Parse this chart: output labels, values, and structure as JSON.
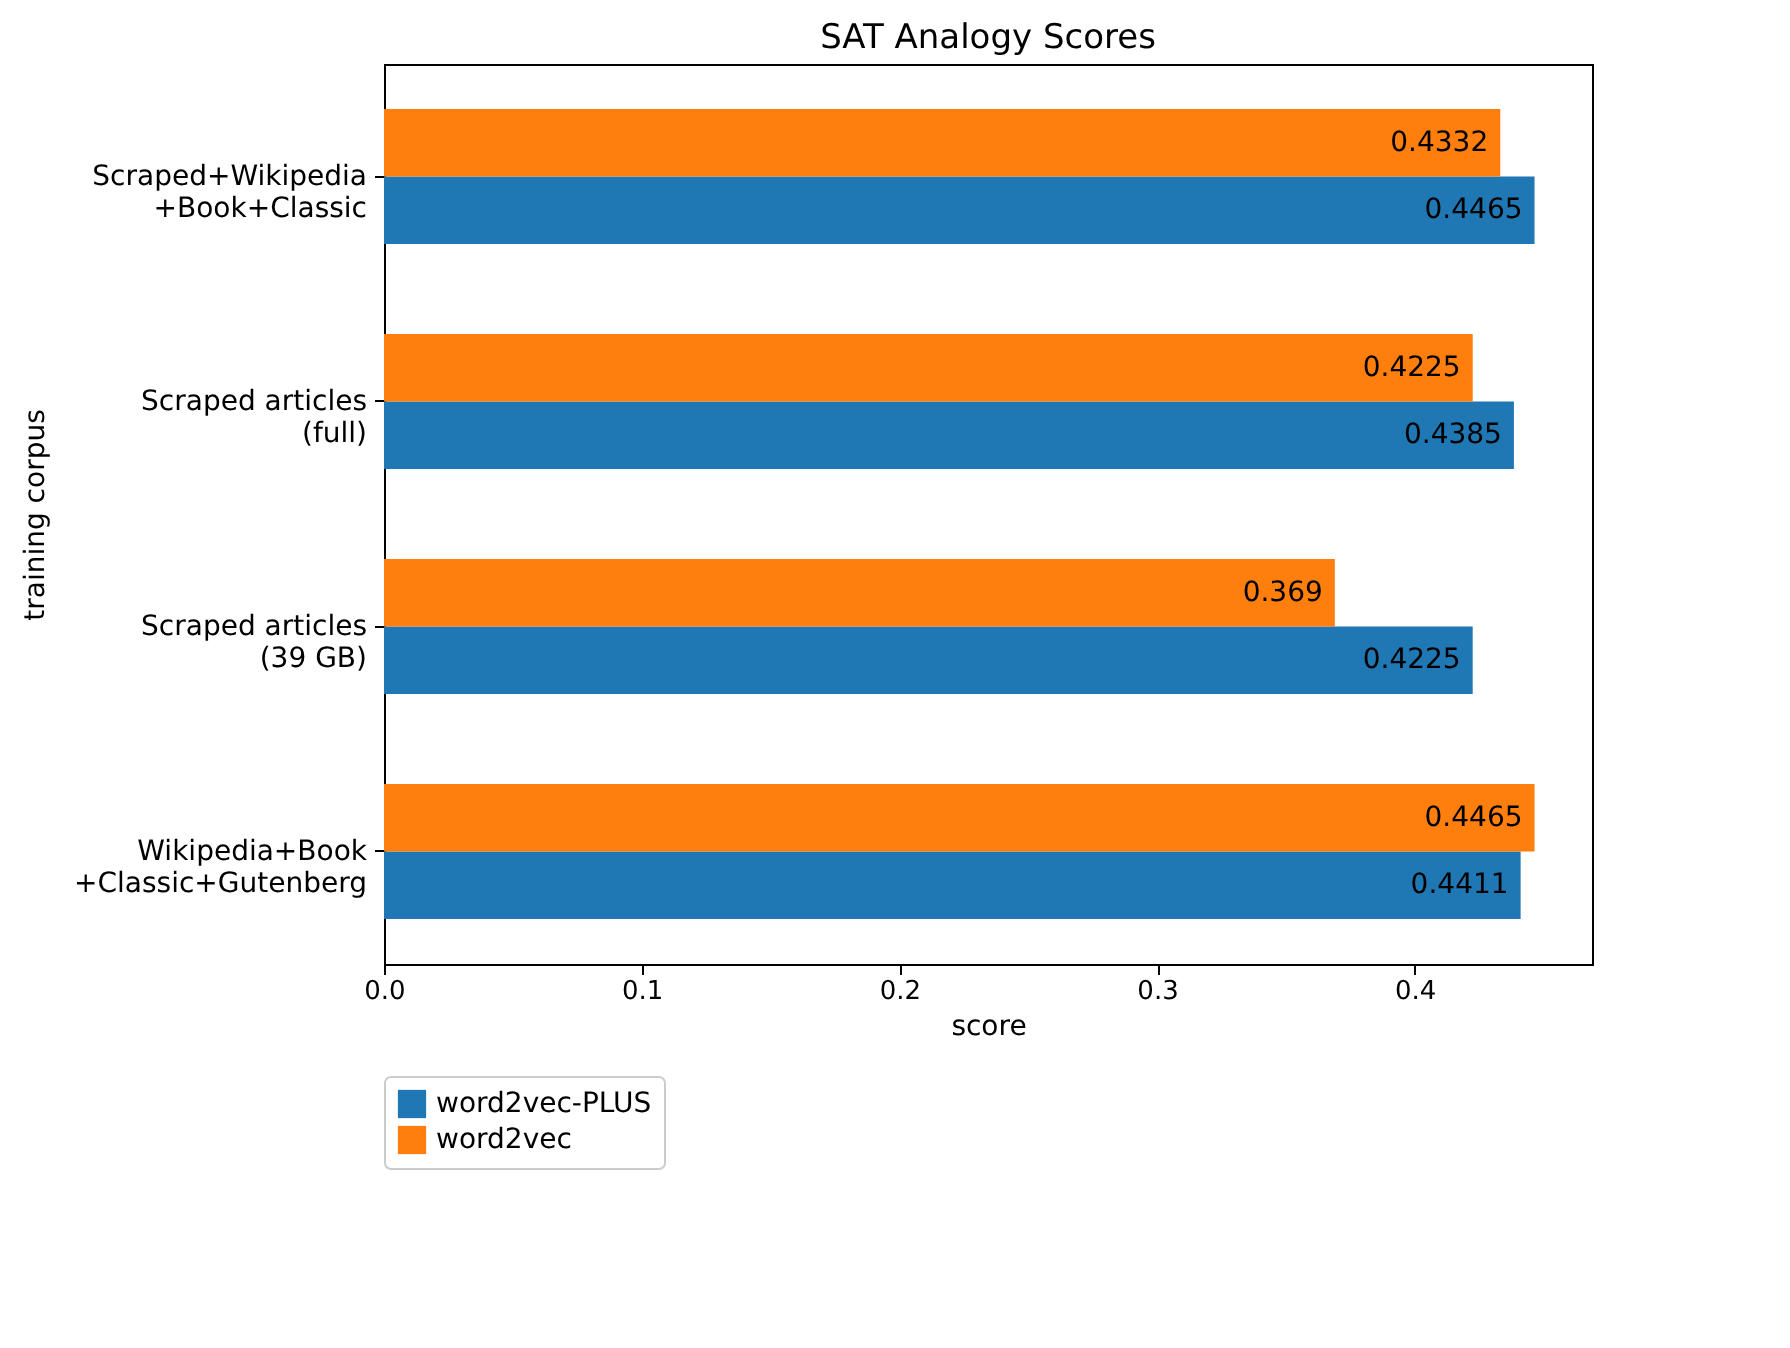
{
  "chart_data": {
    "type": "bar",
    "orientation": "horizontal",
    "title": "SAT Analogy Scores",
    "xlabel": "score",
    "ylabel": "training corpus",
    "categories": [
      "Scraped+Wikipedia\n+Book+Classic",
      "Scraped articles\n(full)",
      "Scraped articles\n(39 GB)",
      "Wikipedia+Book\n+Classic+Gutenberg"
    ],
    "series": [
      {
        "name": "word2vec-PLUS",
        "color": "#1f77b4",
        "values": [
          0.4465,
          0.4385,
          0.4225,
          0.4411
        ]
      },
      {
        "name": "word2vec",
        "color": "#ff7f0e",
        "values": [
          0.4332,
          0.4225,
          0.369,
          0.4465
        ]
      }
    ],
    "xlim": [
      0,
      0.4688
    ],
    "xticks": [
      {
        "value": 0,
        "label": "0.0"
      },
      0.1,
      0.2,
      0.3,
      0.4
    ],
    "data_labels": true,
    "grid": false,
    "legend": "bottom left"
  }
}
